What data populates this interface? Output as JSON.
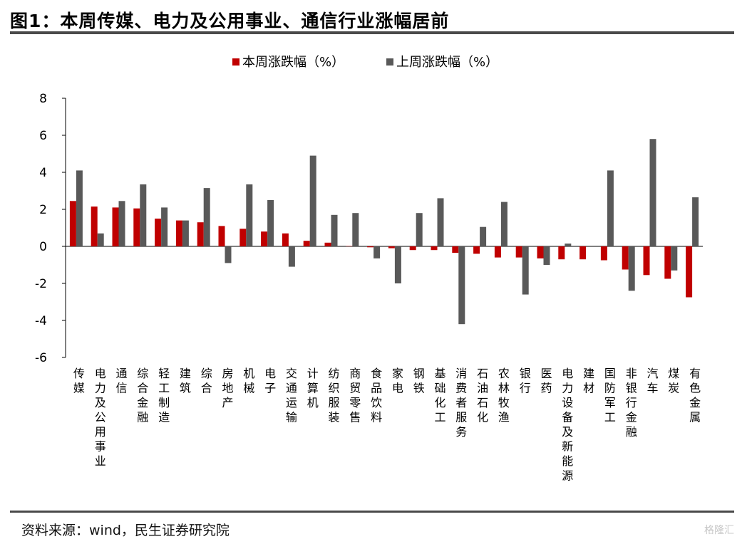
{
  "header": {
    "title": "图1：本周传媒、电力及公用事业、通信行业涨幅居前"
  },
  "footer": {
    "source": "资料来源：wind，民生证券研究院",
    "watermark": "格隆汇"
  },
  "colors": {
    "this_week": "#c00000",
    "last_week": "#595959"
  },
  "chart_data": {
    "type": "bar",
    "title": "图1：本周传媒、电力及公用事业、通信行业涨幅居前",
    "xlabel": "",
    "ylabel": "",
    "ylim": [
      -6,
      8
    ],
    "yticks": [
      8,
      6,
      4,
      2,
      0,
      -2,
      -4,
      -6
    ],
    "grid": false,
    "legend_position": "top-center",
    "categories": [
      "传媒",
      "电力及公用事业",
      "通信",
      "综合金融",
      "轻工制造",
      "建筑",
      "综合",
      "房地产",
      "机械",
      "电子",
      "交通运输",
      "计算机",
      "纺织服装",
      "商贸零售",
      "食品饮料",
      "家电",
      "钢铁",
      "基础化工",
      "消费者服务",
      "石油石化",
      "农林牧渔",
      "银行",
      "医药",
      "电力设备及新能源",
      "建材",
      "国防军工",
      "非银行金融",
      "汽车",
      "煤炭",
      "有色金属"
    ],
    "series": [
      {
        "name": "本周涨跌幅（%）",
        "color": "#c00000",
        "values": [
          2.45,
          2.15,
          2.1,
          2.05,
          1.5,
          1.4,
          1.3,
          1.1,
          0.95,
          0.8,
          0.7,
          0.3,
          0.2,
          0.02,
          -0.05,
          -0.1,
          -0.2,
          -0.2,
          -0.35,
          -0.4,
          -0.6,
          -0.6,
          -0.65,
          -0.7,
          -0.7,
          -0.75,
          -1.25,
          -1.55,
          -1.75,
          -2.75
        ]
      },
      {
        "name": "上周涨跌幅（%）",
        "color": "#595959",
        "values": [
          4.1,
          0.7,
          2.45,
          3.35,
          2.1,
          1.4,
          3.15,
          -0.9,
          3.35,
          2.5,
          -1.1,
          4.9,
          1.7,
          1.8,
          -0.65,
          -2.0,
          1.8,
          2.6,
          -4.2,
          1.05,
          2.4,
          -2.6,
          -1.0,
          0.15,
          0.0,
          4.1,
          -2.4,
          5.8,
          -1.3,
          2.65
        ]
      }
    ]
  }
}
